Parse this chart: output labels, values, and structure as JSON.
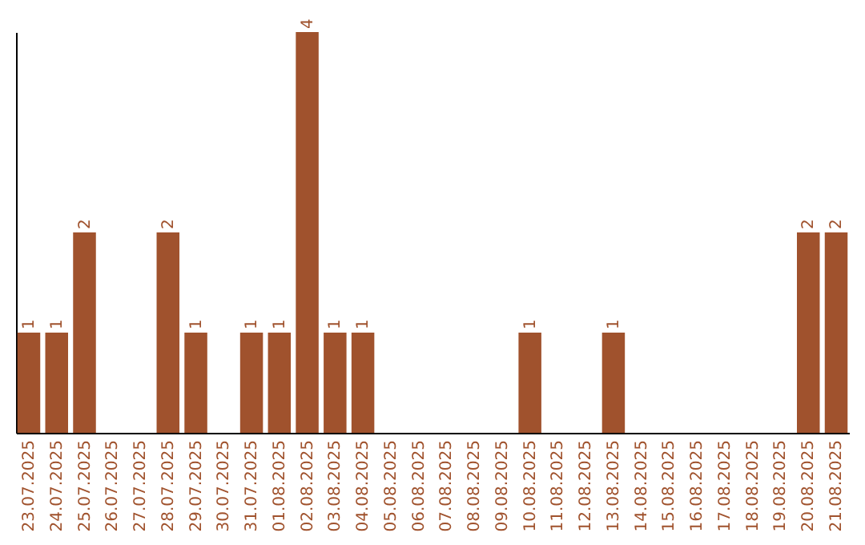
{
  "chart_data": {
    "type": "bar",
    "categories": [
      "23.07.2025",
      "24.07.2025",
      "25.07.2025",
      "26.07.2025",
      "27.07.2025",
      "28.07.2025",
      "29.07.2025",
      "30.07.2025",
      "31.07.2025",
      "01.08.2025",
      "02.08.2025",
      "03.08.2025",
      "04.08.2025",
      "05.08.2025",
      "06.08.2025",
      "07.08.2025",
      "08.08.2025",
      "09.08.2025",
      "10.08.2025",
      "11.08.2025",
      "12.08.2025",
      "13.08.2025",
      "14.08.2025",
      "15.08.2025",
      "16.08.2025",
      "17.08.2025",
      "18.08.2025",
      "19.08.2025",
      "20.08.2025",
      "21.08.2025"
    ],
    "values": [
      1,
      1,
      2,
      0,
      0,
      2,
      1,
      0,
      1,
      1,
      4,
      1,
      1,
      0,
      0,
      0,
      0,
      0,
      1,
      0,
      0,
      1,
      0,
      0,
      0,
      0,
      0,
      0,
      2,
      2
    ],
    "value_labels": [
      "1",
      "1",
      "2",
      null,
      null,
      "2",
      "1",
      null,
      "1",
      "1",
      "4",
      "1",
      "1",
      null,
      null,
      null,
      null,
      null,
      "1",
      null,
      null,
      "1",
      null,
      null,
      null,
      null,
      null,
      null,
      "2",
      "2"
    ],
    "color": "#a0522d",
    "ylim": [
      0,
      4
    ],
    "tick_labels": "x",
    "grid": false
  }
}
